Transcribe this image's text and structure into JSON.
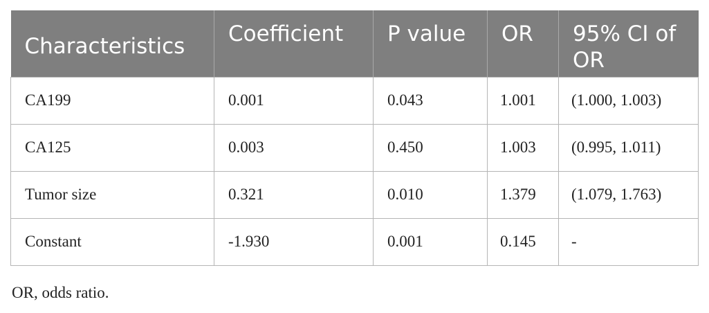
{
  "table": {
    "headers": [
      "Characteristics",
      "Coefficient",
      "P value",
      "OR",
      "95% CI of OR"
    ],
    "rows": [
      [
        "CA199",
        "0.001",
        "0.043",
        "1.001",
        "(1.000, 1.003)"
      ],
      [
        "CA125",
        "0.003",
        "0.450",
        "1.003",
        "(0.995, 1.011)"
      ],
      [
        "Tumor size",
        "0.321",
        "0.010",
        "1.379",
        "(1.079, 1.763)"
      ],
      [
        "Constant",
        "-1.930",
        "0.001",
        "0.145",
        "-"
      ]
    ]
  },
  "footnote": "OR, odds ratio.",
  "colors": {
    "header_bg": "#7f7f7f",
    "header_text": "#ffffff",
    "border": "#b5b5b5"
  }
}
